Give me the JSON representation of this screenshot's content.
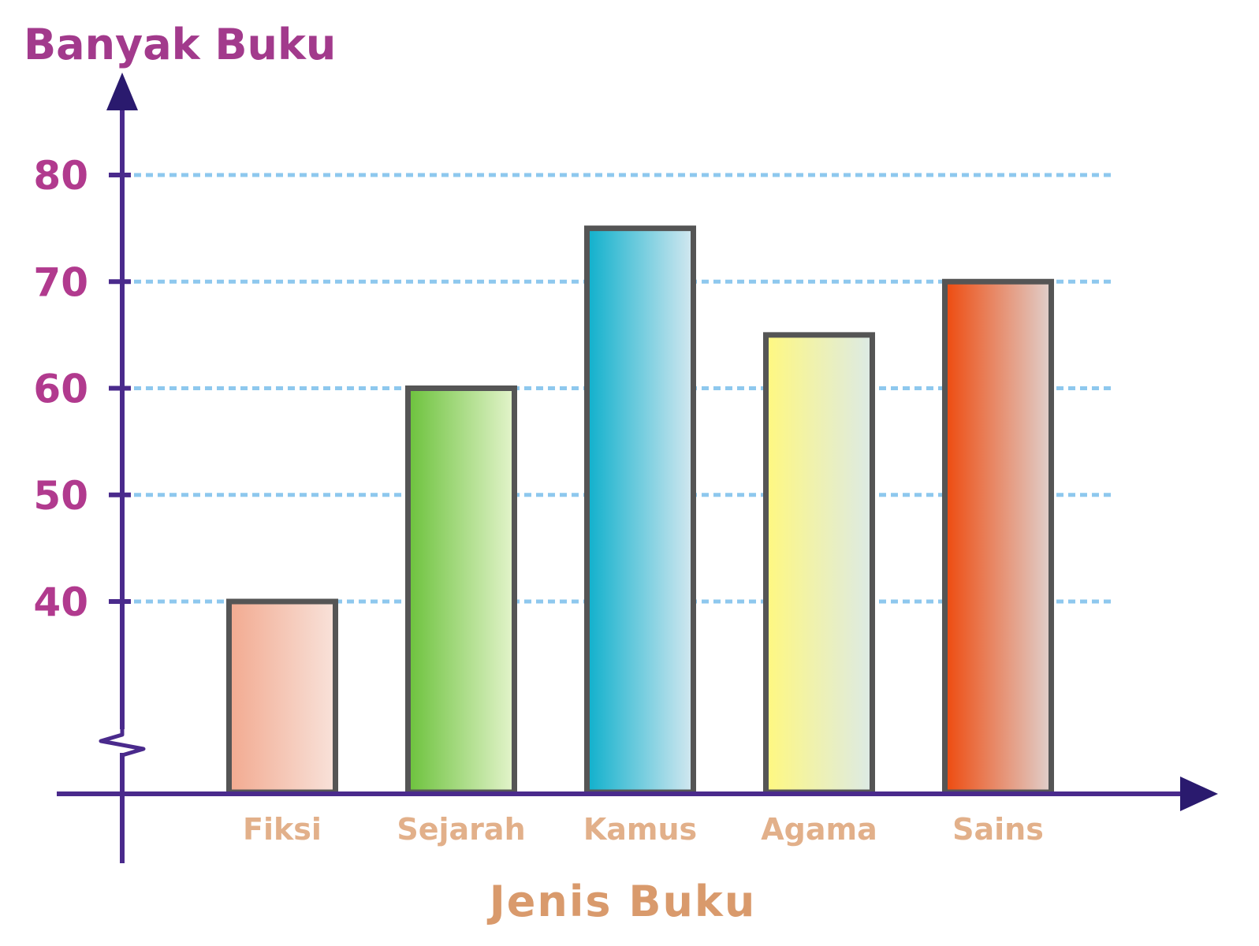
{
  "chart_data": {
    "type": "bar",
    "ylabel": "Banyak Buku",
    "xlabel": "Jenis Buku",
    "categories": [
      "Fiksi",
      "Sejarah",
      "Kamus",
      "Agama",
      "Sains"
    ],
    "values": [
      40,
      60,
      75,
      65,
      70
    ],
    "yticks": [
      "40",
      "50",
      "60",
      "70",
      "80"
    ],
    "ylim": [
      40,
      80
    ],
    "axis_break": true,
    "grid": true,
    "colors": {
      "axis": "#4a2a8c",
      "grid": "#8ec8ee",
      "ylabel": "#a23a8c",
      "xlabel": "#d99a6c",
      "bar_stroke": "#555555",
      "bars": [
        [
          "#f2aa90",
          "#f8e2da"
        ],
        [
          "#6cc23c",
          "#e4f4cc"
        ],
        [
          "#0fb0cc",
          "#d4e8f0"
        ],
        [
          "#fff880",
          "#dceae6"
        ],
        [
          "#ee4a0e",
          "#e0d0cc"
        ]
      ]
    }
  }
}
